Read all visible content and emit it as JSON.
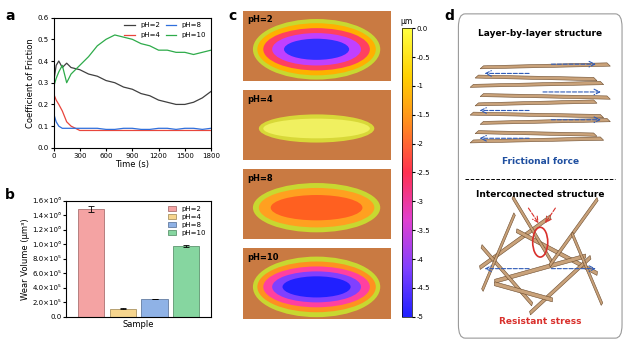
{
  "panel_labels": [
    "a",
    "b",
    "c",
    "d"
  ],
  "chart_data": [
    {
      "type": "line",
      "xlabel": "Time (s)",
      "ylabel": "Coefficient of Friction",
      "x": [
        0,
        30,
        60,
        100,
        150,
        200,
        300,
        400,
        500,
        600,
        700,
        800,
        900,
        1000,
        1100,
        1200,
        1300,
        1400,
        1500,
        1600,
        1700,
        1800
      ],
      "xlim": [
        0,
        1800
      ],
      "ylim": [
        0.0,
        0.6
      ],
      "xticks": [
        0,
        300,
        600,
        900,
        1200,
        1500,
        1800
      ],
      "yticks": [
        0.0,
        0.1,
        0.2,
        0.3,
        0.4,
        0.5,
        0.6
      ],
      "legend": "upper right",
      "series": [
        {
          "name": "pH=2",
          "color": "#404040",
          "values": [
            0.3,
            0.38,
            0.4,
            0.37,
            0.39,
            0.37,
            0.36,
            0.34,
            0.33,
            0.31,
            0.3,
            0.28,
            0.27,
            0.25,
            0.24,
            0.22,
            0.21,
            0.2,
            0.2,
            0.21,
            0.23,
            0.26
          ]
        },
        {
          "name": "pH=4",
          "color": "#e8453c",
          "values": [
            0.25,
            0.22,
            0.2,
            0.17,
            0.12,
            0.1,
            0.08,
            0.08,
            0.08,
            0.08,
            0.08,
            0.08,
            0.08,
            0.08,
            0.08,
            0.08,
            0.08,
            0.08,
            0.08,
            0.08,
            0.08,
            0.08
          ]
        },
        {
          "name": "pH=8",
          "color": "#2f6fdc",
          "values": [
            0.16,
            0.12,
            0.1,
            0.09,
            0.09,
            0.09,
            0.09,
            0.09,
            0.09,
            0.085,
            0.085,
            0.09,
            0.09,
            0.085,
            0.085,
            0.09,
            0.09,
            0.085,
            0.09,
            0.09,
            0.085,
            0.09
          ]
        },
        {
          "name": "pH=10",
          "color": "#2eab4a",
          "values": [
            0.28,
            0.32,
            0.35,
            0.38,
            0.3,
            0.34,
            0.38,
            0.42,
            0.47,
            0.5,
            0.52,
            0.51,
            0.5,
            0.48,
            0.47,
            0.45,
            0.45,
            0.44,
            0.44,
            0.43,
            0.44,
            0.45
          ]
        }
      ]
    },
    {
      "type": "bar",
      "xlabel": "Sample",
      "ylabel": "Wear Volume (μm³)",
      "categories": [
        null
      ],
      "tick_labels": "y",
      "legend": "upper right",
      "ylim": [
        0,
        1600000
      ],
      "yticks": [
        {
          "value": 0,
          "label": "0.0"
        },
        {
          "value": 200000,
          "label": "2.0×10⁵"
        },
        {
          "value": 400000,
          "label": "4.0×10⁵"
        },
        {
          "value": 600000,
          "label": "6.0×10⁵"
        },
        {
          "value": 800000,
          "label": "8.0×10⁵"
        },
        {
          "value": 1000000,
          "label": "1.0×10⁶"
        },
        {
          "value": 1200000,
          "label": "1.2×10⁶"
        },
        {
          "value": 1400000,
          "label": "1.4×10⁶"
        },
        {
          "value": 1600000,
          "label": "1.6×10⁶"
        }
      ],
      "series": [
        {
          "name": "pH=2",
          "color": "#f4a3a3",
          "values": [
            1480000
          ],
          "errors": [
            40000
          ]
        },
        {
          "name": "pH=4",
          "color": "#f6d58e",
          "values": [
            110000
          ],
          "errors": [
            8000
          ]
        },
        {
          "name": "pH=8",
          "color": "#8fb2e6",
          "values": [
            245000
          ],
          "errors": [
            6000
          ]
        },
        {
          "name": "pH=10",
          "color": "#86d6a0",
          "values": [
            970000
          ],
          "errors": [
            15000
          ]
        }
      ]
    }
  ],
  "profiles": {
    "images": [
      "pH=2",
      "pH=4",
      "pH=8",
      "pH=10"
    ],
    "colorbar": {
      "label": "μm",
      "range": [
        -5,
        0
      ],
      "ticks": [
        0.0,
        -0.5,
        -1,
        -1.5,
        -2,
        -2.5,
        -3,
        -3.5,
        -4,
        -4.5,
        -5
      ]
    }
  },
  "diagram": {
    "top": {
      "title": "Layer-by-layer structure",
      "caption": "Frictional force"
    },
    "bottom": {
      "title": "Interconnected structure",
      "caption": "Resistant stress"
    }
  }
}
